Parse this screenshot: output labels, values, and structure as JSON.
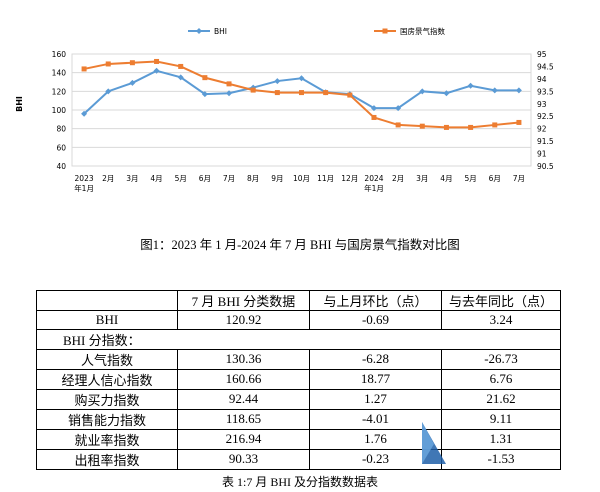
{
  "chart_data": {
    "type": "line",
    "categories": [
      "2023年1月",
      "2月",
      "3月",
      "4月",
      "5月",
      "6月",
      "7月",
      "8月",
      "9月",
      "10月",
      "11月",
      "12月",
      "2024年1月",
      "2月",
      "3月",
      "4月",
      "5月",
      "6月",
      "7月"
    ],
    "tick_labels": [
      {
        "line1": "2023",
        "line2": "年1月"
      },
      {
        "line1": "2月",
        "line2": ""
      },
      {
        "line1": "3月",
        "line2": ""
      },
      {
        "line1": "4月",
        "line2": ""
      },
      {
        "line1": "5月",
        "line2": ""
      },
      {
        "line1": "6月",
        "line2": ""
      },
      {
        "line1": "7月",
        "line2": ""
      },
      {
        "line1": "8月",
        "line2": ""
      },
      {
        "line1": "9月",
        "line2": ""
      },
      {
        "line1": "10月",
        "line2": ""
      },
      {
        "line1": "11月",
        "line2": ""
      },
      {
        "line1": "12月",
        "line2": ""
      },
      {
        "line1": "2024",
        "line2": "年1月"
      },
      {
        "line1": "2月",
        "line2": ""
      },
      {
        "line1": "3月",
        "line2": ""
      },
      {
        "line1": "4月",
        "line2": ""
      },
      {
        "line1": "5月",
        "line2": ""
      },
      {
        "line1": "6月",
        "line2": ""
      },
      {
        "line1": "7月",
        "line2": ""
      }
    ],
    "series": [
      {
        "name": "BHI",
        "axis": "left",
        "color": "#5b9bd5",
        "marker": "diamond",
        "values": [
          96,
          120,
          129,
          142,
          135,
          117,
          118,
          124,
          131,
          134,
          119,
          117,
          102,
          102,
          120,
          118,
          126,
          121,
          121
        ]
      },
      {
        "name": "国房景气指数",
        "axis": "right",
        "color": "#ed7d31",
        "marker": "square",
        "values": [
          94.4,
          94.6,
          94.65,
          94.7,
          94.5,
          94.05,
          93.8,
          93.55,
          93.45,
          93.45,
          93.45,
          93.35,
          92.45,
          92.15,
          92.1,
          92.05,
          92.05,
          92.15,
          92.25
        ]
      }
    ],
    "ylabel": "BHI",
    "y_left": {
      "min": 40,
      "max": 160,
      "ticks": [
        40,
        60,
        80,
        100,
        120,
        140,
        160
      ]
    },
    "y_right": {
      "min": 90.5,
      "max": 95,
      "ticks": [
        "90.5",
        "91",
        "91.5",
        "92",
        "92.5",
        "93",
        "93.5",
        "94",
        "94.5",
        "95"
      ]
    },
    "grid": true,
    "legend_position": "top"
  },
  "figure_caption": "图1：2023 年 1 月-2024 年 7 月 BHI 与国房景气指数对比图",
  "table": {
    "headers": [
      "",
      "7 月 BHI 分类数据",
      "与上月环比（点）",
      "与去年同比（点）"
    ],
    "rows": [
      {
        "name": "BHI",
        "v1": "120.92",
        "v2": "-0.69",
        "v3": "3.24"
      },
      {
        "group": "BHI 分指数："
      },
      {
        "name": "人气指数",
        "v1": "130.36",
        "v2": "-6.28",
        "v3": "-26.73"
      },
      {
        "name": "经理人信心指数",
        "v1": "160.66",
        "v2": "18.77",
        "v3": "6.76"
      },
      {
        "name": "购买力指数",
        "v1": "92.44",
        "v2": "1.27",
        "v3": "21.62"
      },
      {
        "name": "销售能力指数",
        "v1": "118.65",
        "v2": "-4.01",
        "v3": "9.11"
      },
      {
        "name": "就业率指数",
        "v1": "216.94",
        "v2": "1.76",
        "v3": "1.31"
      },
      {
        "name": "出租率指数",
        "v1": "90.33",
        "v2": "-0.23",
        "v3": "-1.53"
      }
    ]
  },
  "table_caption": "表 1:7 月 BHI 及分指数数据表"
}
